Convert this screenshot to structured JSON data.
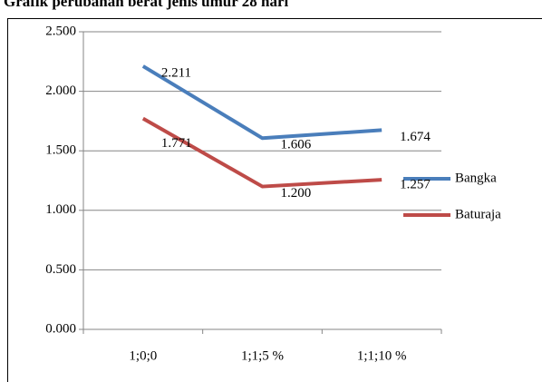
{
  "chart_data": {
    "type": "line",
    "title": "Grafik perubahan berat jenis umur 28 hari",
    "categories": [
      "1;0;0",
      "1;1;5 %",
      "1;1;10 %"
    ],
    "series": [
      {
        "name": "Bangka",
        "color": "#4a7ebb",
        "values": [
          2.211,
          1.606,
          1.674
        ],
        "value_labels": [
          "2.211",
          "1.606",
          "1.674"
        ]
      },
      {
        "name": "Baturaja",
        "color": "#be4b48",
        "values": [
          1.771,
          1.2,
          1.257
        ],
        "value_labels": [
          "1.771",
          "1.200",
          "1.257"
        ]
      }
    ],
    "ylim": [
      0,
      2.5
    ],
    "yticks": [
      {
        "value": 0,
        "label": "0.000"
      },
      {
        "value": 0.5,
        "label": "0.500"
      },
      {
        "value": 1,
        "label": "1.000"
      },
      {
        "value": 1.5,
        "label": "1.500"
      },
      {
        "value": 2,
        "label": "2.000"
      },
      {
        "value": 2.5,
        "label": "2.500"
      }
    ],
    "grid": true,
    "legend": "right"
  }
}
